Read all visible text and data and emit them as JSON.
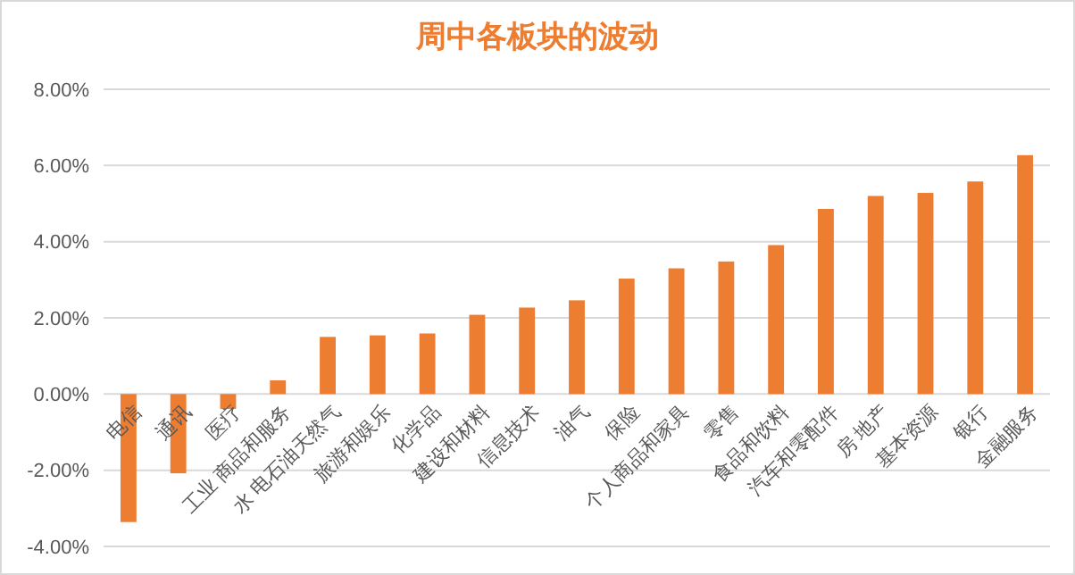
{
  "chart_data": {
    "type": "bar",
    "title": "周中各板块的波动",
    "categories": [
      "电信",
      "通讯",
      "医疗",
      "工业 商品和服务",
      "水 电石油天然气",
      "旅游和娱乐",
      "化学品",
      "建设和材料",
      "信息技术",
      "油气",
      "保险",
      "个人商品和家具",
      "零售",
      "食品和饮料",
      "汽车和零配件",
      "房 地产",
      "基本资源",
      "银行",
      "金融服务"
    ],
    "series": [
      {
        "color": "#ed7d31",
        "values": [
          -3.36,
          -2.08,
          -0.39,
          0.36,
          1.5,
          1.54,
          1.59,
          2.08,
          2.27,
          2.46,
          3.03,
          3.3,
          3.48,
          3.91,
          4.86,
          5.2,
          5.28,
          5.58,
          6.27
        ]
      }
    ],
    "ylim": [
      -4,
      8
    ],
    "yticks": [
      {
        "value": -4,
        "label": "-4.00%"
      },
      {
        "value": -2,
        "label": "-2.00%"
      },
      {
        "value": 0,
        "label": "0.00%"
      },
      {
        "value": 2,
        "label": "2.00%"
      },
      {
        "value": 4,
        "label": "4.00%"
      },
      {
        "value": 6,
        "label": "6.00%"
      },
      {
        "value": 8,
        "label": "8.00%"
      }
    ],
    "grid": "y"
  }
}
